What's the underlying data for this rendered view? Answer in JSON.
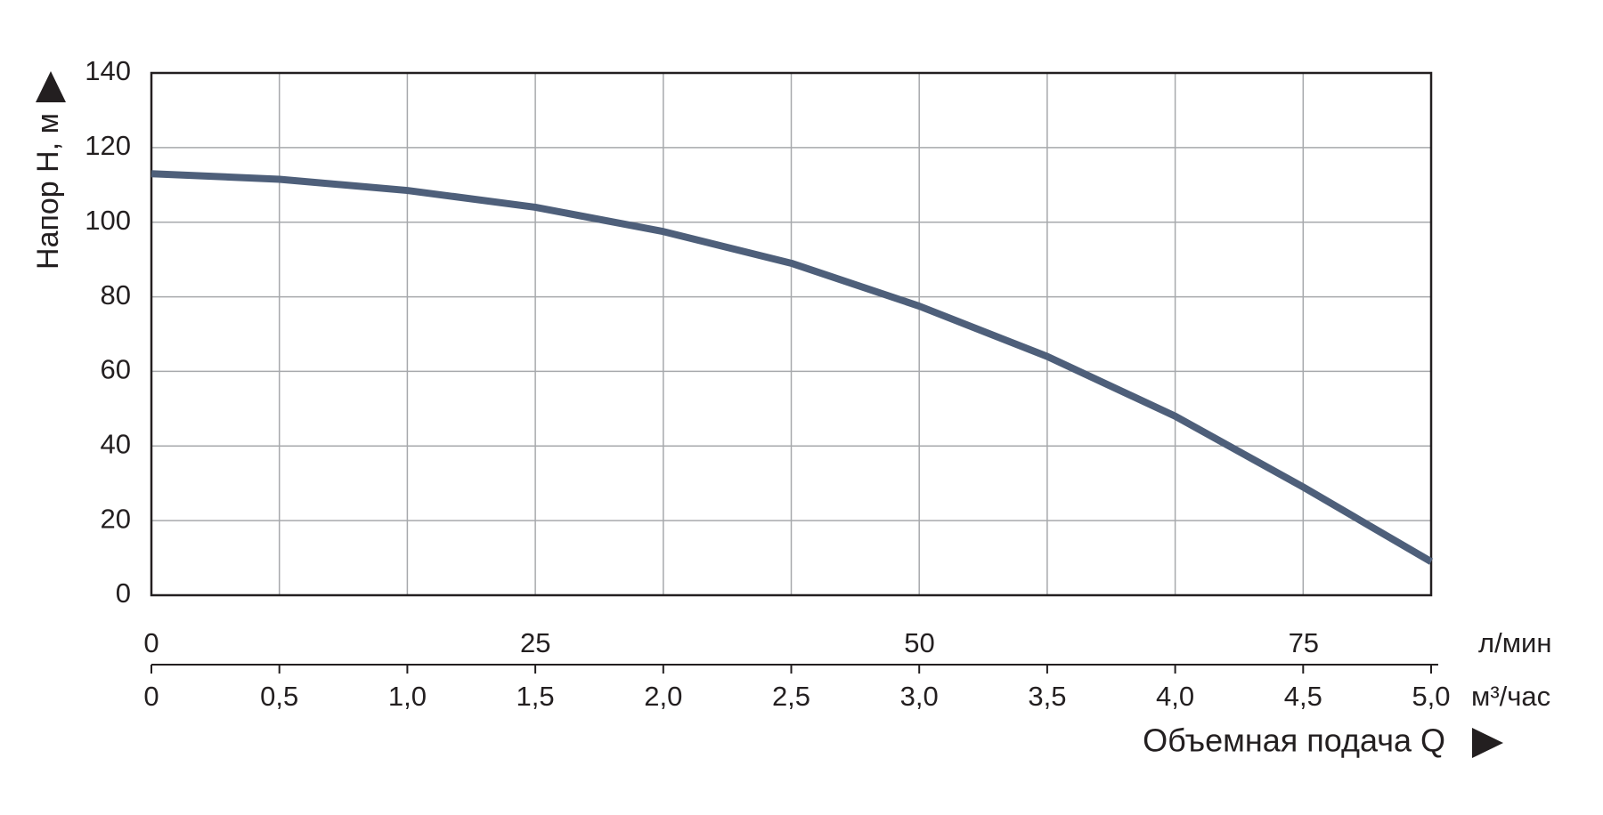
{
  "chart_data": {
    "type": "line",
    "y_label": "Напор H, м",
    "x_label": "Объемная подача Q",
    "x_unit": "м³/час",
    "x2_unit": "л/мин",
    "x": [
      0,
      0.5,
      1.0,
      1.5,
      2.0,
      2.5,
      3.0,
      3.5,
      4.0,
      4.5,
      5.0
    ],
    "series": [
      {
        "color": "#4e5f7a",
        "values": [
          113,
          111.5,
          108.5,
          104,
          97.5,
          89,
          77.5,
          64,
          48,
          29,
          9
        ]
      }
    ],
    "xlim": [
      0,
      5
    ],
    "xticks": [
      0,
      {
        "value": 0.5,
        "label": "0,5"
      },
      {
        "value": 1,
        "label": "1,0"
      },
      {
        "value": 1.5,
        "label": "1,5"
      },
      {
        "value": 2,
        "label": "2,0"
      },
      {
        "value": 2.5,
        "label": "2,5"
      },
      {
        "value": 3,
        "label": "3,0"
      },
      {
        "value": 3.5,
        "label": "3,5"
      },
      {
        "value": 4,
        "label": "4,0"
      },
      {
        "value": 4.5,
        "label": "4,5"
      },
      {
        "value": 5,
        "label": "5,0"
      }
    ],
    "x2lim": [
      0,
      83.3
    ],
    "x2ticks": [
      0,
      25,
      50,
      75
    ],
    "ylim": [
      0,
      140
    ],
    "yticks": [
      0,
      20,
      40,
      60,
      80,
      100,
      120,
      140
    ],
    "grid": true
  }
}
